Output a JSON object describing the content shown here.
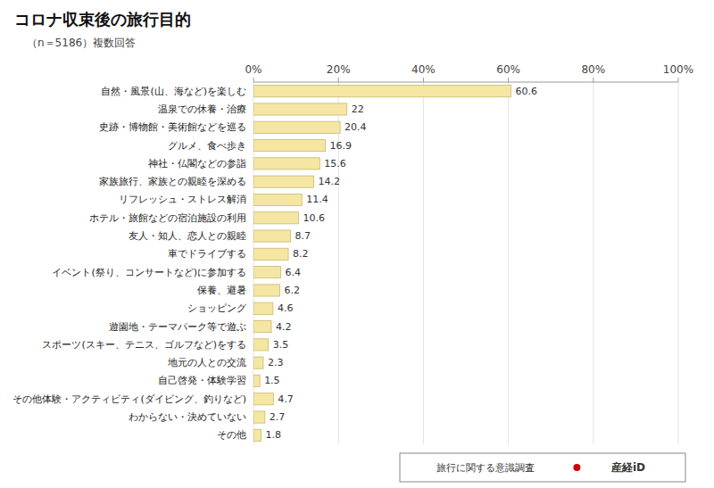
{
  "chart_data": {
    "type": "bar",
    "orientation": "horizontal",
    "title": "コロナ収束後の旅行目的",
    "subtitle": "（n＝5186）複数回答",
    "categories": [
      "自然・風景(山、海など)を楽しむ",
      "温泉での休養・治療",
      "史跡・博物館・美術館などを巡る",
      "グルメ、食べ歩き",
      "神社・仏閣などの参詣",
      "家族旅行、家族との親睦を深める",
      "リフレッシュ・ストレス解消",
      "ホテル・旅館などの宿泊施設の利用",
      "友人・知人、恋人との親睦",
      "車でドライブする",
      "イベント(祭り、コンサートなど)に参加する",
      "保養、避暑",
      "ショッピング",
      "遊園地・テーマパーク等で遊ぶ",
      "スポーツ(スキー、テニス、ゴルフなど)をする",
      "地元の人との交流",
      "自己啓発・体験学習",
      "その他体験・アクティビティ(ダイビング、釣りなど)",
      "わからない・決めていない",
      "その他"
    ],
    "values": [
      60.6,
      22.0,
      20.4,
      16.9,
      15.6,
      14.2,
      11.4,
      10.6,
      8.7,
      8.2,
      6.4,
      6.2,
      4.6,
      4.2,
      3.5,
      2.3,
      1.5,
      4.7,
      2.7,
      1.8
    ],
    "color": "#F5E6A3",
    "xlim": [
      0,
      100
    ],
    "xticks": [
      {
        "value": 0,
        "label": "0%"
      },
      {
        "value": 20,
        "label": "20%"
      },
      {
        "value": 40,
        "label": "40%"
      },
      {
        "value": 60,
        "label": "60%"
      },
      {
        "value": 80,
        "label": "80%"
      },
      {
        "value": 100,
        "label": "100%"
      }
    ],
    "grid": true,
    "data_labels": true,
    "annotations": [
      "旅行に関する意識調査",
      "産経iD"
    ]
  }
}
